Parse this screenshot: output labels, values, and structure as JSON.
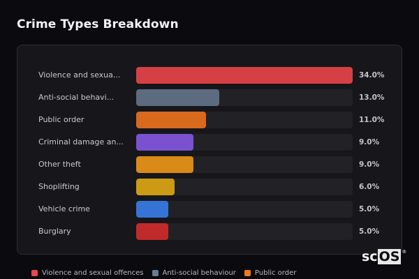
{
  "header": {
    "title": "Crime Types Breakdown"
  },
  "chart_data": {
    "type": "bar",
    "orientation": "horizontal",
    "title": "Crime Types Breakdown",
    "categories": [
      "Violence and sexual offences",
      "Anti-social behaviour",
      "Public order",
      "Criminal damage and arson",
      "Other theft",
      "Shoplifting",
      "Vehicle crime",
      "Burglary"
    ],
    "display_labels": [
      "Violence and sexua...",
      "Anti-social behavi...",
      "Public order",
      "Criminal damage an...",
      "Other theft",
      "Shoplifting",
      "Vehicle crime",
      "Burglary"
    ],
    "values": [
      34.0,
      13.0,
      11.0,
      9.0,
      9.0,
      6.0,
      5.0,
      5.0
    ],
    "value_labels": [
      "34.0%",
      "13.0%",
      "11.0%",
      "9.0%",
      "9.0%",
      "6.0%",
      "5.0%",
      "5.0%"
    ],
    "colors": [
      "#d64044",
      "#5c6b80",
      "#d9691d",
      "#7a52d1",
      "#d98a17",
      "#cc9a14",
      "#3574d4",
      "#c02a2a"
    ],
    "unit": "%",
    "xlabel": "",
    "ylabel": "",
    "scale_max": 34.0,
    "grid": false,
    "legend_position": "bottom"
  },
  "legend": {
    "items": [
      {
        "label": "Violence and sexual offences",
        "color": "#e8474b"
      },
      {
        "label": "Anti-social behaviour",
        "color": "#6b7a91"
      },
      {
        "label": "Public order",
        "color": "#f07a22"
      }
    ]
  },
  "branding": {
    "logo_left": "sc",
    "logo_right": "OS",
    "reg": "®"
  }
}
